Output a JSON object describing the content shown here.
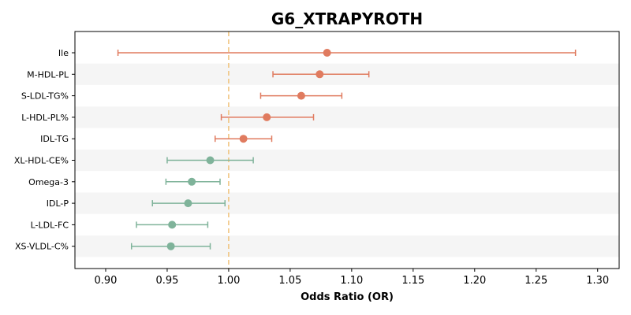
{
  "chart_data": {
    "type": "forest",
    "title": "G6_XTRAPYROTH",
    "xlabel": "Odds Ratio (OR)",
    "xlim": [
      0.875,
      1.3175
    ],
    "x_ticks": [
      0.9,
      0.95,
      1.0,
      1.05,
      1.1,
      1.15,
      1.2,
      1.25,
      1.3
    ],
    "x_tick_labels": [
      "0.90",
      "0.95",
      "1.00",
      "1.05",
      "1.10",
      "1.15",
      "1.20",
      "1.25",
      "1.30"
    ],
    "reference_line": 1.0,
    "colors": {
      "above_one": "#e07b5f",
      "below_one": "#7fb39a",
      "reference_line": "#f0c27a",
      "band": "#f5f5f5"
    },
    "rows": [
      {
        "label": "Ile",
        "or": 1.08,
        "lower": 0.91,
        "upper": 1.282
      },
      {
        "label": "M-HDL-PL",
        "or": 1.074,
        "lower": 1.036,
        "upper": 1.114
      },
      {
        "label": "S-LDL-TG%",
        "or": 1.059,
        "lower": 1.026,
        "upper": 1.092
      },
      {
        "label": "L-HDL-PL%",
        "or": 1.031,
        "lower": 0.994,
        "upper": 1.069
      },
      {
        "label": "IDL-TG",
        "or": 1.012,
        "lower": 0.989,
        "upper": 1.035
      },
      {
        "label": "XL-HDL-CE%",
        "or": 0.985,
        "lower": 0.95,
        "upper": 1.02
      },
      {
        "label": "Omega-3",
        "or": 0.97,
        "lower": 0.949,
        "upper": 0.993
      },
      {
        "label": "IDL-P",
        "or": 0.967,
        "lower": 0.938,
        "upper": 0.997
      },
      {
        "label": "L-LDL-FC",
        "or": 0.954,
        "lower": 0.925,
        "upper": 0.983
      },
      {
        "label": "XS-VLDL-C%",
        "or": 0.953,
        "lower": 0.921,
        "upper": 0.985
      }
    ]
  }
}
